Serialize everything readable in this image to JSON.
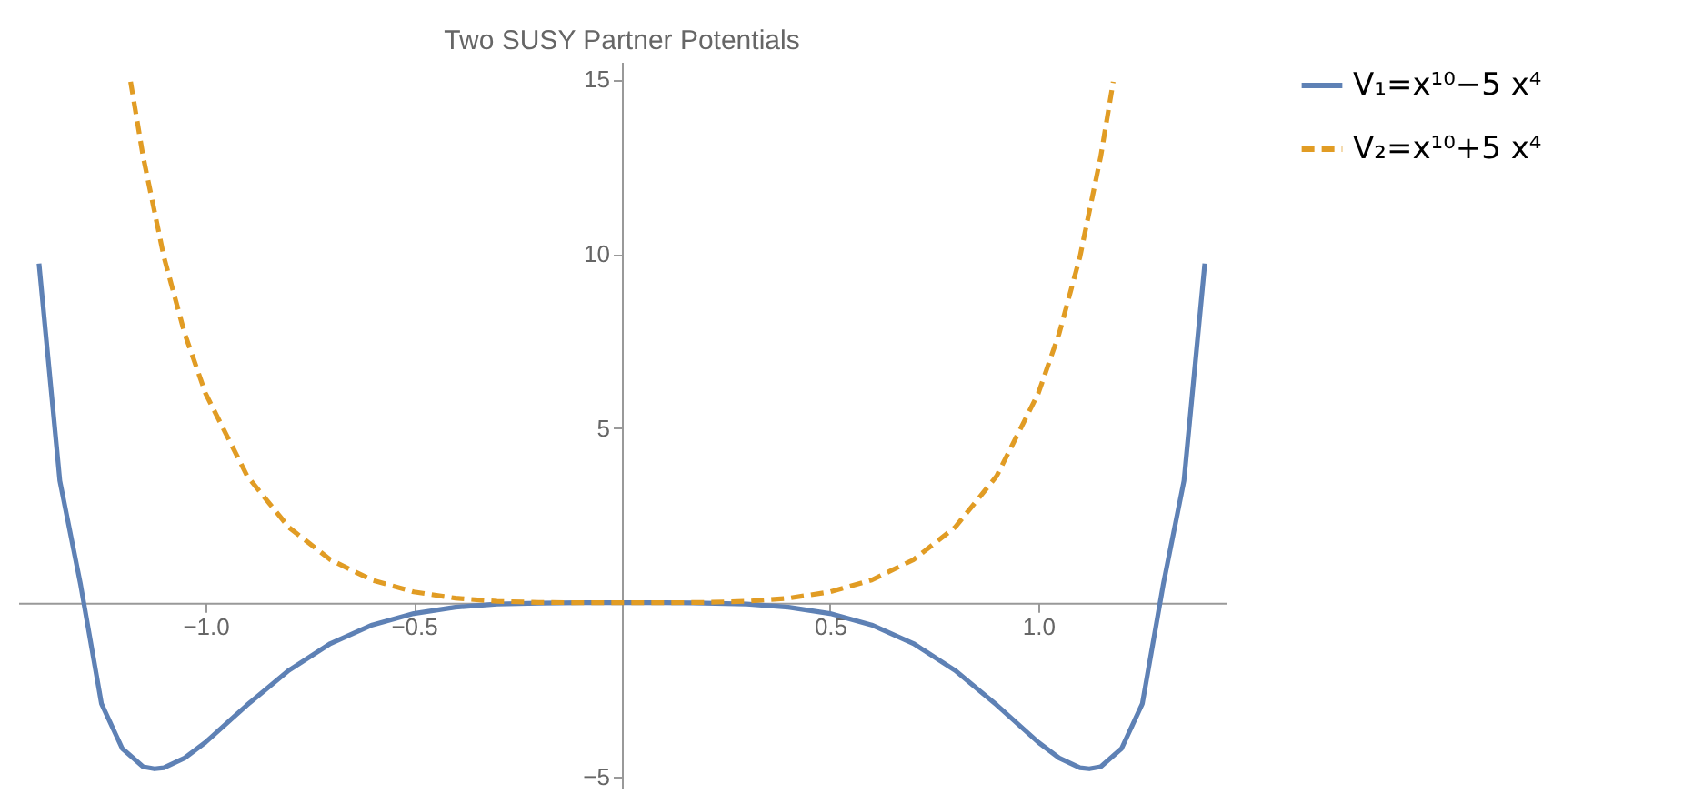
{
  "chart_data": {
    "type": "line",
    "title": "Two SUSY Partner Potentials",
    "xlim": [
      -1.45,
      1.45
    ],
    "xticks": [
      {
        "value": -1,
        "label": "−1.0"
      },
      {
        "value": -0.5,
        "label": "−0.5"
      },
      {
        "value": 0.5,
        "label": "0.5"
      },
      {
        "value": 1,
        "label": "1.0"
      }
    ],
    "ylim": [
      -5.3,
      15.5
    ],
    "yticks": [
      {
        "value": -5,
        "label": "−5"
      },
      5,
      10,
      15
    ],
    "grid": false,
    "legend": "right",
    "marker": "none",
    "series": [
      {
        "name": "V₁=x¹⁰−5 x⁴",
        "color": "#5e81b5",
        "line_style": "solid",
        "x": [
          -1.4,
          -1.35,
          -1.3,
          -1.25,
          -1.2,
          -1.15,
          -1.1225,
          -1.1,
          -1.05,
          -1.0,
          -0.9,
          -0.8,
          -0.7,
          -0.6,
          -0.5,
          -0.4,
          -0.3,
          -0.2,
          -0.1,
          0,
          0.1,
          0.2,
          0.3,
          0.4,
          0.5,
          0.6,
          0.7,
          0.8,
          0.9,
          1.0,
          1.05,
          1.1,
          1.1225,
          1.15,
          1.2,
          1.25,
          1.3,
          1.35,
          1.4
        ],
        "values": [
          9.72,
          3.5,
          0.51,
          -2.89,
          -4.18,
          -4.7,
          -4.76,
          -4.73,
          -4.45,
          -4,
          -2.93,
          -1.94,
          -1.17,
          -0.64,
          -0.31,
          -0.13,
          -0.04,
          -0.01,
          0,
          0,
          0,
          -0.01,
          -0.04,
          -0.13,
          -0.31,
          -0.64,
          -1.17,
          -1.94,
          -2.93,
          -4,
          -4.45,
          -4.73,
          -4.76,
          -4.7,
          -4.18,
          -2.89,
          0.51,
          3.5,
          9.72
        ]
      },
      {
        "name": "V₂=x¹⁰+5 x⁴",
        "color": "#e19c24",
        "line_style": "dashed",
        "x": [
          -1.18,
          -1.15,
          -1.1,
          -1.05,
          -1.0,
          -0.9,
          -0.8,
          -0.7,
          -0.6,
          -0.5,
          -0.4,
          -0.3,
          -0.2,
          -0.1,
          0,
          0.1,
          0.2,
          0.3,
          0.4,
          0.5,
          0.6,
          0.7,
          0.8,
          0.9,
          1.0,
          1.05,
          1.1,
          1.15,
          1.18
        ],
        "values": [
          14.93,
          12.79,
          9.91,
          7.71,
          6,
          3.63,
          2.16,
          1.23,
          0.65,
          0.31,
          0.13,
          0.04,
          0.01,
          0,
          0,
          0,
          0.01,
          0.04,
          0.13,
          0.31,
          0.65,
          1.23,
          2.16,
          3.63,
          6,
          7.71,
          9.91,
          12.79,
          14.93
        ]
      }
    ]
  }
}
